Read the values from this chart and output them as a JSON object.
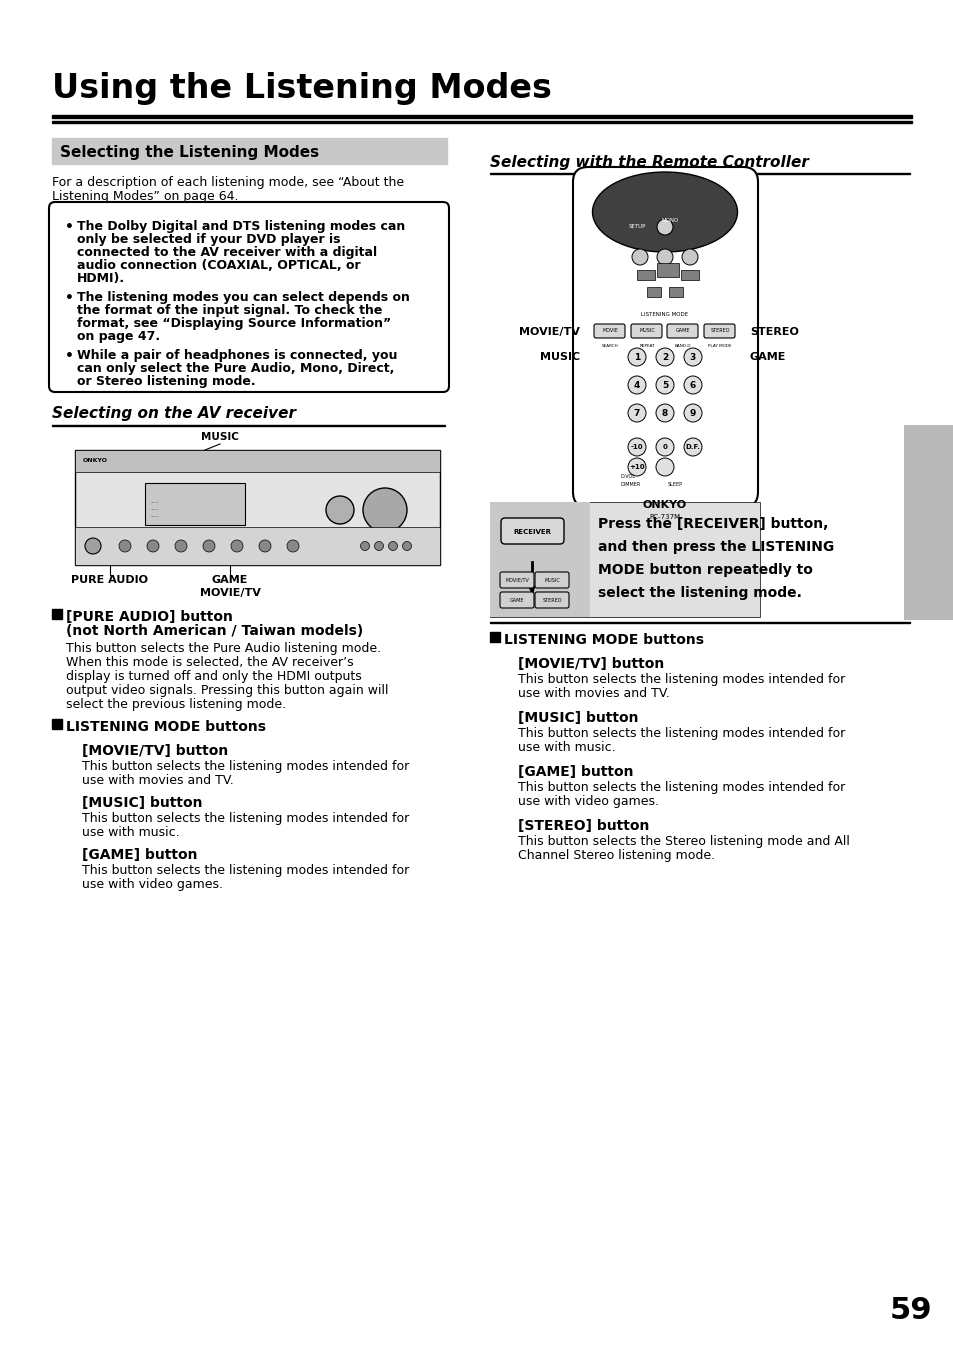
{
  "title": "Using the Listening Modes",
  "section1_header": "Selecting the Listening Modes",
  "section2_header": "Selecting with the Remote Controller",
  "section3_header": "Selecting on the AV receiver",
  "bg_color": "#ffffff",
  "text_color": "#000000",
  "section_bg": "#c8c8c8",
  "page_number": "59",
  "intro_text": "For a description of each listening mode, see “About the\nListening Modes” on page 64.",
  "bullet1_lines": [
    "The Dolby Digital and DTS listening modes can",
    "only be selected if your DVD player is",
    "connected to the AV receiver with a digital",
    "audio connection (COAXIAL, OPTICAL, or",
    "HDMI)."
  ],
  "bullet2_lines": [
    "The listening modes you can select depends on",
    "the format of the input signal. To check the",
    "format, see “Displaying Source Information”",
    "on page 47."
  ],
  "bullet3_lines": [
    "While a pair of headphones is connected, you",
    "can only select the Pure Audio, Mono, Direct,",
    "or Stereo listening mode."
  ],
  "pure_audio_hdr1": "[PURE AUDIO] button",
  "pure_audio_hdr2": "(not North American / Taiwan models)",
  "pure_audio_body": [
    "This button selects the Pure Audio listening mode.",
    "When this mode is selected, the AV receiver’s",
    "display is turned off and only the HDMI outputs",
    "output video signals. Pressing this button again will",
    "select the previous listening mode."
  ],
  "listening_mode_header": "LISTENING MODE buttons",
  "movie_tv_header": "[MOVIE/TV] button",
  "movie_tv_body": [
    "This button selects the listening modes intended for",
    "use with movies and TV."
  ],
  "music_header": "[MUSIC] button",
  "music_body": [
    "This button selects the listening modes intended for",
    "use with music."
  ],
  "game_header": "[GAME] button",
  "game_body": [
    "This button selects the listening modes intended for",
    "use with video games."
  ],
  "right_listening_mode_header": "LISTENING MODE buttons",
  "right_movie_tv_header": "[MOVIE/TV] button",
  "right_movie_tv_body": [
    "This button selects the listening modes intended for",
    "use with movies and TV."
  ],
  "right_music_header": "[MUSIC] button",
  "right_music_body": [
    "This button selects the listening modes intended for",
    "use with music."
  ],
  "right_game_header": "[GAME] button",
  "right_game_body": [
    "This button selects the listening modes intended for",
    "use with video games."
  ],
  "right_stereo_header": "[STEREO] button",
  "right_stereo_body": [
    "This button selects the Stereo listening mode and All",
    "Channel Stereo listening mode."
  ],
  "remote_instruction": [
    "Press the [RECEIVER] button,",
    "and then press the LISTENING",
    "MODE button repeatedly to",
    "select the listening mode."
  ],
  "movie_tv_label": "MOVIE/TV",
  "music_label": "MUSIC",
  "stereo_label": "STEREO",
  "game_label": "GAME",
  "pure_audio_front_label": "PURE AUDIO",
  "game_front_label": "GAME",
  "movie_tv_front_label": "MOVIE/TV",
  "music_front_label": "MUSIC",
  "gray_bar_color": "#b8b8b8"
}
